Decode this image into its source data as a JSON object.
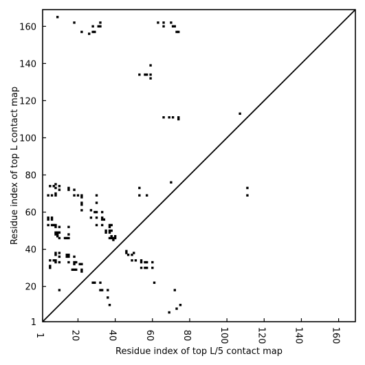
{
  "chart_data": {
    "type": "heatmap",
    "title": "",
    "xlabel": "Residue index of top L/5 contact map",
    "ylabel": "Residue index of top L contact map",
    "xlim": [
      1,
      169
    ],
    "ylim": [
      1,
      169
    ],
    "xticks": [
      1,
      20,
      40,
      60,
      80,
      100,
      120,
      140,
      160
    ],
    "yticks": [
      1,
      20,
      40,
      60,
      80,
      100,
      120,
      140,
      160
    ],
    "diagonal_line": true,
    "grid": false,
    "point_color": "#000000",
    "point_size": 1.25,
    "points": [
      [
        9,
        165
      ],
      [
        18,
        162
      ],
      [
        22,
        157
      ],
      [
        26,
        156
      ],
      [
        28,
        157
      ],
      [
        29,
        157
      ],
      [
        28,
        160
      ],
      [
        31,
        160
      ],
      [
        32,
        160
      ],
      [
        32,
        162
      ],
      [
        63,
        162
      ],
      [
        66,
        162
      ],
      [
        66,
        160
      ],
      [
        70,
        162
      ],
      [
        71,
        160
      ],
      [
        72,
        160
      ],
      [
        73,
        157
      ],
      [
        74,
        157
      ],
      [
        59,
        139
      ],
      [
        53,
        134
      ],
      [
        56,
        134
      ],
      [
        57,
        134
      ],
      [
        59,
        134
      ],
      [
        59,
        132
      ],
      [
        107,
        113
      ],
      [
        66,
        111
      ],
      [
        69,
        111
      ],
      [
        71,
        111
      ],
      [
        74,
        111
      ],
      [
        74,
        110
      ],
      [
        70,
        76
      ],
      [
        5,
        74
      ],
      [
        7,
        74
      ],
      [
        8,
        75
      ],
      [
        8,
        73
      ],
      [
        10,
        74
      ],
      [
        10,
        72
      ],
      [
        15,
        73
      ],
      [
        15,
        72
      ],
      [
        18,
        72
      ],
      [
        53,
        73
      ],
      [
        111,
        73
      ],
      [
        4,
        69
      ],
      [
        6,
        69
      ],
      [
        8,
        69
      ],
      [
        8,
        70
      ],
      [
        18,
        69
      ],
      [
        20,
        69
      ],
      [
        22,
        68
      ],
      [
        22,
        69
      ],
      [
        30,
        69
      ],
      [
        53,
        69
      ],
      [
        57,
        69
      ],
      [
        111,
        69
      ],
      [
        22,
        65
      ],
      [
        22,
        64
      ],
      [
        22,
        61
      ],
      [
        30,
        65
      ],
      [
        27,
        61
      ],
      [
        29,
        60
      ],
      [
        30,
        60
      ],
      [
        33,
        60
      ],
      [
        4,
        57
      ],
      [
        4,
        56
      ],
      [
        6,
        57
      ],
      [
        6,
        56
      ],
      [
        27,
        57
      ],
      [
        30,
        57
      ],
      [
        33,
        57
      ],
      [
        33,
        56
      ],
      [
        34,
        56
      ],
      [
        4,
        53
      ],
      [
        6,
        53
      ],
      [
        7,
        53
      ],
      [
        8,
        53
      ],
      [
        8,
        52
      ],
      [
        10,
        52
      ],
      [
        15,
        52
      ],
      [
        30,
        53
      ],
      [
        33,
        53
      ],
      [
        37,
        53
      ],
      [
        38,
        53
      ],
      [
        37,
        52
      ],
      [
        8,
        49
      ],
      [
        9,
        49
      ],
      [
        10,
        49
      ],
      [
        8,
        48
      ],
      [
        9,
        48
      ],
      [
        9,
        47
      ],
      [
        15,
        48
      ],
      [
        15,
        46
      ],
      [
        35,
        50
      ],
      [
        37,
        50
      ],
      [
        38,
        50
      ],
      [
        37,
        49
      ],
      [
        35,
        49
      ],
      [
        10,
        46
      ],
      [
        13,
        46
      ],
      [
        14,
        46
      ],
      [
        37,
        46
      ],
      [
        38,
        46
      ],
      [
        39,
        46
      ],
      [
        40,
        46
      ],
      [
        39,
        45
      ],
      [
        40,
        47
      ],
      [
        38,
        47
      ],
      [
        8,
        38
      ],
      [
        8,
        37
      ],
      [
        10,
        38
      ],
      [
        10,
        36
      ],
      [
        14,
        37
      ],
      [
        14,
        36
      ],
      [
        15,
        37
      ],
      [
        15,
        36
      ],
      [
        18,
        36
      ],
      [
        46,
        39
      ],
      [
        46,
        38
      ],
      [
        47,
        37
      ],
      [
        49,
        37
      ],
      [
        50,
        38
      ],
      [
        5,
        34
      ],
      [
        7,
        34
      ],
      [
        8,
        34
      ],
      [
        8,
        33
      ],
      [
        10,
        33
      ],
      [
        15,
        33
      ],
      [
        18,
        33
      ],
      [
        19,
        33
      ],
      [
        49,
        34
      ],
      [
        51,
        34
      ],
      [
        54,
        34
      ],
      [
        54,
        33
      ],
      [
        56,
        33
      ],
      [
        57,
        33
      ],
      [
        60,
        33
      ],
      [
        5,
        31
      ],
      [
        5,
        30
      ],
      [
        18,
        32
      ],
      [
        21,
        32
      ],
      [
        22,
        32
      ],
      [
        54,
        30
      ],
      [
        56,
        30
      ],
      [
        57,
        30
      ],
      [
        60,
        30
      ],
      [
        17,
        29
      ],
      [
        18,
        29
      ],
      [
        19,
        29
      ],
      [
        22,
        29
      ],
      [
        22,
        28
      ],
      [
        28,
        22
      ],
      [
        29,
        22
      ],
      [
        32,
        22
      ],
      [
        61,
        22
      ],
      [
        10,
        18
      ],
      [
        32,
        18
      ],
      [
        33,
        18
      ],
      [
        36,
        18
      ],
      [
        72,
        18
      ],
      [
        36,
        14
      ],
      [
        37,
        10
      ],
      [
        75,
        10
      ],
      [
        73,
        8
      ],
      [
        69,
        6
      ]
    ]
  }
}
